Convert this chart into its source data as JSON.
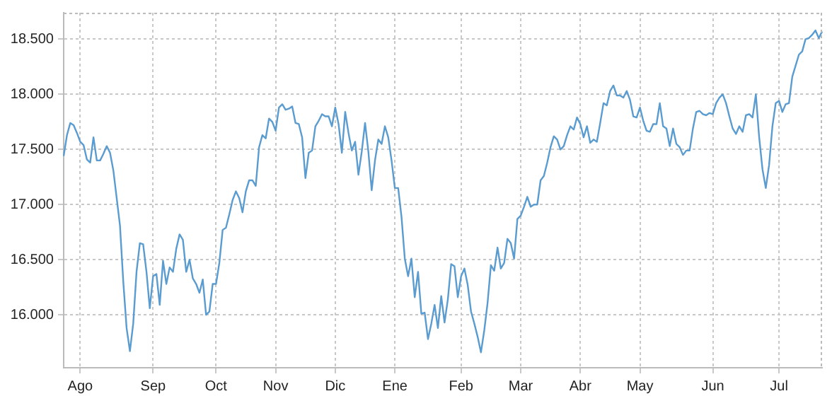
{
  "chart_data": {
    "type": "line",
    "grid": true,
    "marker": "none",
    "line_style": "solid",
    "categories": [
      null,
      null,
      null,
      null,
      null,
      "Ago",
      null,
      null,
      null,
      null,
      null,
      null,
      null,
      null,
      null,
      null,
      null,
      null,
      null,
      null,
      null,
      null,
      null,
      null,
      null,
      null,
      null,
      "Sep",
      null,
      null,
      null,
      null,
      null,
      null,
      null,
      null,
      null,
      null,
      null,
      null,
      null,
      null,
      null,
      null,
      null,
      null,
      "Oct",
      null,
      null,
      null,
      null,
      null,
      null,
      null,
      null,
      null,
      null,
      null,
      null,
      null,
      null,
      null,
      null,
      null,
      "Nov",
      null,
      null,
      null,
      null,
      null,
      null,
      null,
      null,
      null,
      null,
      null,
      null,
      null,
      null,
      null,
      null,
      null,
      "Dic",
      null,
      null,
      null,
      null,
      null,
      null,
      null,
      null,
      null,
      null,
      null,
      null,
      null,
      null,
      null,
      null,
      null,
      "Ene",
      null,
      null,
      null,
      null,
      null,
      null,
      null,
      null,
      null,
      null,
      null,
      null,
      null,
      null,
      null,
      null,
      null,
      null,
      null,
      "Feb",
      null,
      null,
      null,
      null,
      null,
      null,
      null,
      null,
      null,
      null,
      null,
      null,
      null,
      null,
      null,
      null,
      null,
      "Mar",
      null,
      null,
      null,
      null,
      null,
      null,
      null,
      null,
      null,
      null,
      null,
      null,
      null,
      null,
      null,
      null,
      null,
      "Abr",
      null,
      null,
      null,
      null,
      null,
      null,
      null,
      null,
      null,
      null,
      null,
      null,
      null,
      null,
      null,
      null,
      null,
      "May",
      null,
      null,
      null,
      null,
      null,
      null,
      null,
      null,
      null,
      null,
      null,
      null,
      null,
      null,
      null,
      null,
      null,
      null,
      null,
      null,
      null,
      "Jun",
      null,
      null,
      null,
      null,
      null,
      null,
      null,
      null,
      null,
      null,
      null,
      null,
      null,
      null,
      null,
      null,
      null,
      null,
      null,
      "Jul",
      null,
      null,
      null,
      null,
      null,
      null,
      null,
      null,
      null,
      null,
      null,
      null,
      null
    ],
    "ylim": [
      15520,
      18740
    ],
    "yticks": [
      {
        "value": 16000,
        "label": "16.000"
      },
      {
        "value": 16500,
        "label": "16.500"
      },
      {
        "value": 17000,
        "label": "17.000"
      },
      {
        "value": 17500,
        "label": "17.500"
      },
      {
        "value": 18000,
        "label": "18.000"
      },
      {
        "value": 18500,
        "label": "18.500"
      }
    ],
    "series": [
      {
        "color": "#5a9bd0",
        "values": [
          17440,
          17630,
          17740,
          17720,
          17650,
          17570,
          17540,
          17410,
          17380,
          17610,
          17400,
          17400,
          17460,
          17530,
          17470,
          17310,
          17060,
          16810,
          16300,
          15880,
          15670,
          15920,
          16390,
          16650,
          16640,
          16390,
          16060,
          16350,
          16370,
          16090,
          16490,
          16280,
          16430,
          16390,
          16600,
          16730,
          16680,
          16390,
          16500,
          16330,
          16280,
          16200,
          16320,
          16000,
          16030,
          16280,
          16280,
          16470,
          16770,
          16790,
          16910,
          17040,
          17120,
          17060,
          16930,
          17120,
          17220,
          17220,
          17170,
          17520,
          17630,
          17600,
          17780,
          17750,
          17670,
          17880,
          17910,
          17860,
          17870,
          17890,
          17740,
          17730,
          17610,
          17240,
          17470,
          17490,
          17710,
          17760,
          17820,
          17800,
          17800,
          17710,
          17880,
          17730,
          17470,
          17840,
          17650,
          17490,
          17570,
          17270,
          17480,
          17740,
          17480,
          17130,
          17400,
          17590,
          17550,
          17710,
          17610,
          17400,
          17150,
          17150,
          16890,
          16510,
          16350,
          16510,
          16160,
          16390,
          16010,
          16020,
          15780,
          15920,
          16090,
          15880,
          16170,
          15930,
          16140,
          16460,
          16440,
          16160,
          16350,
          16420,
          16270,
          16030,
          15920,
          15800,
          15660,
          15860,
          16110,
          16450,
          16400,
          16610,
          16420,
          16470,
          16690,
          16650,
          16510,
          16870,
          16900,
          16980,
          17070,
          16980,
          17000,
          17000,
          17220,
          17260,
          17380,
          17520,
          17620,
          17590,
          17500,
          17530,
          17630,
          17710,
          17680,
          17790,
          17730,
          17610,
          17710,
          17560,
          17590,
          17570,
          17740,
          17920,
          17900,
          18030,
          18080,
          17990,
          17990,
          17970,
          18030,
          17950,
          17800,
          17790,
          17880,
          17760,
          17670,
          17660,
          17730,
          17730,
          17920,
          17710,
          17690,
          17530,
          17690,
          17550,
          17520,
          17450,
          17490,
          17490,
          17690,
          17840,
          17850,
          17820,
          17810,
          17830,
          17820,
          17920,
          17970,
          18000,
          17920,
          17800,
          17690,
          17640,
          17710,
          17660,
          17810,
          17820,
          17790,
          18000,
          17610,
          17320,
          17150,
          17360,
          17710,
          17920,
          17940,
          17840,
          17910,
          17920,
          18160,
          18260,
          18360,
          18390,
          18500,
          18510,
          18540,
          18580,
          18510,
          18570
        ]
      }
    ]
  }
}
